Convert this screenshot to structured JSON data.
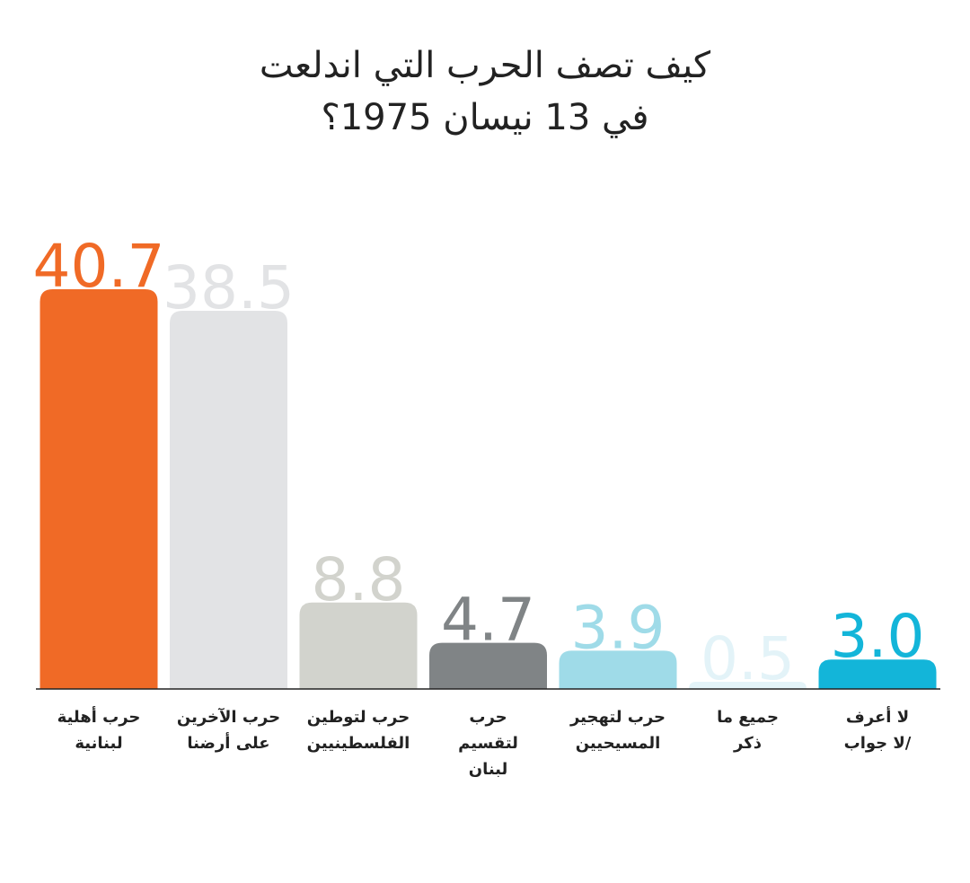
{
  "chart_data": {
    "type": "bar",
    "title_lines": [
      "كيف تصف الحرب التي اندلعت",
      "في 13 نيسان 1975؟"
    ],
    "categories": [
      [
        "حرب أهلية",
        "لبنانية"
      ],
      [
        "حرب الآخرين",
        "على أرضنا"
      ],
      [
        "حرب لتوطين",
        "الفلسطينيين"
      ],
      [
        "حرب",
        "لتقسيم",
        "لبنان"
      ],
      [
        "حرب لتهجير",
        "المسيحيين"
      ],
      [
        "جميع ما",
        "ذكر"
      ],
      [
        "لا أعرف",
        "/لا جواب"
      ]
    ],
    "values": [
      40.7,
      38.5,
      8.8,
      4.7,
      3.9,
      0.5,
      3.0
    ],
    "value_labels": [
      "40.7",
      "38.5",
      "8.8",
      "4.7",
      "3.9",
      "0.5",
      "3.0"
    ],
    "colors": [
      "#f06a26",
      "#e2e3e5",
      "#d2d3cd",
      "#808486",
      "#9fdbe8",
      "#e3f3f8",
      "#13b5d9"
    ],
    "label_colors": [
      "#f06a26",
      "#e2e3e5",
      "#d2d3cd",
      "#808486",
      "#9fdbe8",
      "#e3f3f8",
      "#13b5d9"
    ],
    "xlabel": "",
    "ylabel": "",
    "ylim": [
      0,
      40.7
    ],
    "grid": false,
    "legend": "none"
  }
}
